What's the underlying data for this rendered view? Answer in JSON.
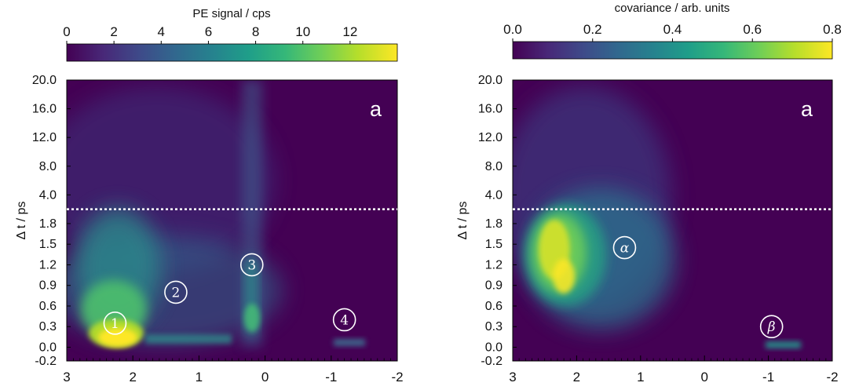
{
  "chart_data": [
    {
      "type": "heatmap",
      "title": "",
      "xlabel": "",
      "ylabel": "Δ t / ps",
      "panel_label": "a",
      "xlim": [
        3,
        -2
      ],
      "x_ticks": [
        "3",
        "2",
        "1",
        "0",
        "-1",
        "-2"
      ],
      "y_ticks": [
        "-0.2",
        "0.0",
        "0.3",
        "0.6",
        "0.9",
        "1.2",
        "1.5",
        "1.8",
        "4.0",
        "8.0",
        "12.0",
        "16.0",
        "20.0"
      ],
      "y_axis_scale": "piecewise: linear from -0.2 to 1.8, expanded range 1.8 to 20.0",
      "y_break_marker": 2.5,
      "colorbar": {
        "label": "PE signal / cps",
        "range": [
          0,
          14
        ],
        "ticks": [
          "0",
          "2",
          "4",
          "6",
          "8",
          "10",
          "12"
        ],
        "colormap": [
          "#440154",
          "#482878",
          "#3e4a89",
          "#31688e",
          "#26828e",
          "#1f9e89",
          "#35b779",
          "#6ece58",
          "#b5de2b",
          "#fde725"
        ]
      },
      "features": [
        {
          "label": "1",
          "x": 2.27,
          "y": 0.35,
          "peak": 14
        },
        {
          "label": "2",
          "x": 1.35,
          "y": 0.8,
          "peak": 3
        },
        {
          "label": "3",
          "x": 0.2,
          "y": 1.2,
          "peak": 6
        },
        {
          "label": "4",
          "x": -1.2,
          "y": 0.4,
          "peak": 2
        }
      ]
    },
    {
      "type": "heatmap",
      "title": "",
      "xlabel": "",
      "ylabel": "Δ t / ps",
      "panel_label": "a",
      "xlim": [
        3,
        -2
      ],
      "x_ticks": [
        "3",
        "2",
        "1",
        "0",
        "-1",
        "-2"
      ],
      "y_ticks": [
        "-0.2",
        "0.0",
        "0.3",
        "0.6",
        "0.9",
        "1.2",
        "1.5",
        "1.8",
        "4.0",
        "8.0",
        "12.0",
        "16.0",
        "20.0"
      ],
      "y_axis_scale": "piecewise: linear from -0.2 to 1.8, expanded range 1.8 to 20.0",
      "y_break_marker": 2.5,
      "colorbar": {
        "label": "covariance / arb. units",
        "range": [
          0,
          0.8
        ],
        "ticks": [
          "0.0",
          "0.2",
          "0.4",
          "0.6",
          "0.8"
        ],
        "colormap": [
          "#440154",
          "#482878",
          "#3e4a89",
          "#31688e",
          "#26828e",
          "#1f9e89",
          "#35b779",
          "#6ece58",
          "#b5de2b",
          "#fde725"
        ]
      },
      "features": [
        {
          "label": "α",
          "x": 1.25,
          "y": 1.45,
          "peak": 0.75
        },
        {
          "label": "β",
          "x": -1.05,
          "y": 0.3,
          "peak": 0.2
        }
      ]
    }
  ]
}
